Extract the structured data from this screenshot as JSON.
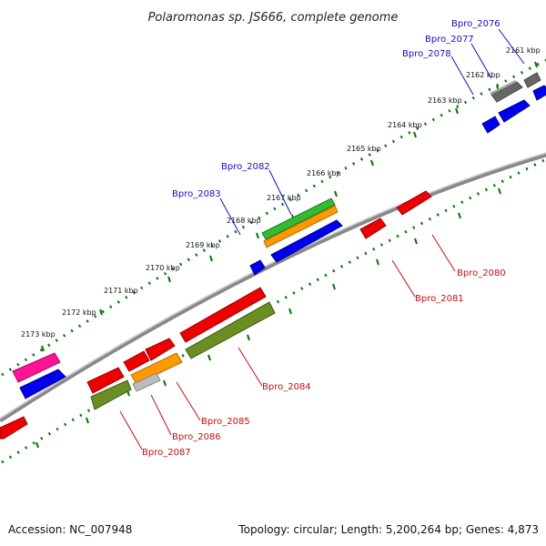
{
  "title": "Polaromonas sp. JS666, complete genome",
  "kbp_ticks": [
    "2161 kbp",
    "2162 kbp",
    "2163 kbp",
    "2164 kbp",
    "2165 kbp",
    "2166 kbp",
    "2167 kbp",
    "2168 kbp",
    "2169 kbp",
    "2170 kbp",
    "2171 kbp",
    "2172 kbp",
    "2173 kbp"
  ],
  "forward_genes": [
    "Bpro_2076",
    "Bpro_2077",
    "Bpro_2078",
    "Bpro_2082",
    "Bpro_2083"
  ],
  "reverse_genes": [
    "Bpro_2080",
    "Bpro_2081",
    "Bpro_2084",
    "Bpro_2085",
    "Bpro_2086",
    "Bpro_2087"
  ],
  "footer": {
    "accession": "Accession: NC_007948",
    "summary": "Topology: circular; Length: 5,200,264 bp; Genes: 4,873"
  },
  "colors": {
    "cds_blue": "#0000ee",
    "cds_red": "#ee0000",
    "rna_gray": "#666666",
    "green": "#33bb33",
    "orange": "#ff9900",
    "olive": "#6b8e23",
    "magenta": "#ff1493",
    "tick_green": "#007700"
  }
}
